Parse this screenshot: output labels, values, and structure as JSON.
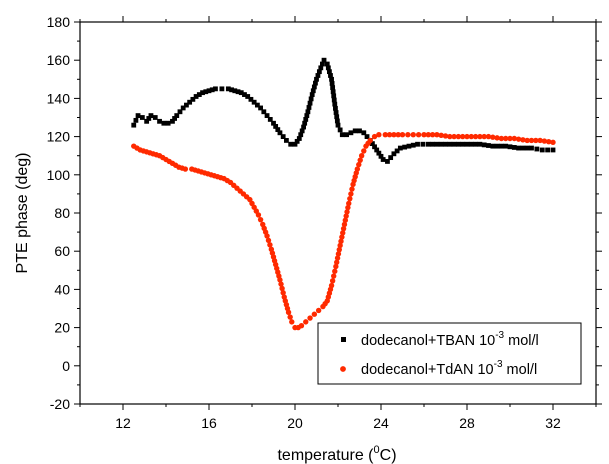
{
  "chart_data": {
    "type": "scatter",
    "title": "",
    "xlabel": {
      "text": "temperature (",
      "sup": "0",
      "tail": "C)"
    },
    "ylabel": "PTE phase (deg)",
    "xlim": [
      10,
      34
    ],
    "ylim": [
      -20,
      180
    ],
    "x_ticks": [
      12,
      16,
      20,
      24,
      28,
      32
    ],
    "y_ticks": [
      -20,
      0,
      20,
      40,
      60,
      80,
      100,
      120,
      140,
      160,
      180
    ],
    "grid": false,
    "legend_position": "bottom-right",
    "series": [
      {
        "name": "dodecanol+TBAN 10-3 mol/l",
        "legend": {
          "prefix": "dodecanol+TBAN 10",
          "sup": "-3",
          "suffix": " mol/l"
        },
        "color": "#000000",
        "marker": "square",
        "points": [
          [
            12.5,
            126
          ],
          [
            12.7,
            131
          ],
          [
            12.9,
            130
          ],
          [
            13.1,
            128
          ],
          [
            13.3,
            131
          ],
          [
            13.5,
            130
          ],
          [
            13.7,
            128
          ],
          [
            13.9,
            127
          ],
          [
            14.1,
            127
          ],
          [
            14.3,
            128
          ],
          [
            14.5,
            131
          ],
          [
            14.8,
            135
          ],
          [
            15.1,
            138
          ],
          [
            15.4,
            141
          ],
          [
            15.7,
            143
          ],
          [
            16.0,
            144
          ],
          [
            16.3,
            145
          ],
          [
            16.6,
            145
          ],
          [
            16.9,
            145
          ],
          [
            17.2,
            144
          ],
          [
            17.5,
            143
          ],
          [
            17.8,
            141
          ],
          [
            18.1,
            138
          ],
          [
            18.4,
            135
          ],
          [
            18.7,
            131
          ],
          [
            19.0,
            127
          ],
          [
            19.3,
            122
          ],
          [
            19.6,
            118
          ],
          [
            19.8,
            116
          ],
          [
            20.0,
            116
          ],
          [
            20.2,
            119
          ],
          [
            20.4,
            125
          ],
          [
            20.6,
            133
          ],
          [
            20.8,
            142
          ],
          [
            21.0,
            150
          ],
          [
            21.2,
            156
          ],
          [
            21.35,
            160
          ],
          [
            21.5,
            158
          ],
          [
            21.7,
            150
          ],
          [
            21.85,
            137
          ],
          [
            22.0,
            126
          ],
          [
            22.2,
            121
          ],
          [
            22.4,
            121
          ],
          [
            22.6,
            122
          ],
          [
            22.8,
            123
          ],
          [
            23.0,
            123
          ],
          [
            23.2,
            122
          ],
          [
            23.5,
            118
          ],
          [
            23.8,
            113
          ],
          [
            24.1,
            108
          ],
          [
            24.3,
            107
          ],
          [
            24.6,
            111
          ],
          [
            24.9,
            114
          ],
          [
            25.3,
            115
          ],
          [
            25.7,
            116
          ],
          [
            26.2,
            116
          ],
          [
            26.8,
            116
          ],
          [
            27.4,
            116
          ],
          [
            28.0,
            116
          ],
          [
            28.6,
            116
          ],
          [
            29.2,
            115
          ],
          [
            29.8,
            115
          ],
          [
            30.4,
            114
          ],
          [
            31.0,
            114
          ],
          [
            31.5,
            113
          ],
          [
            32.0,
            113
          ]
        ]
      },
      {
        "name": "dodecanol+TdAN 10-3 mol/l",
        "legend": {
          "prefix": "dodecanol+TdAN 10",
          "sup": "-3",
          "suffix": " mol/l"
        },
        "color": "#ff2a00",
        "marker": "circle",
        "points": [
          [
            12.5,
            115
          ],
          [
            12.8,
            113
          ],
          [
            13.1,
            112
          ],
          [
            13.4,
            111
          ],
          [
            13.7,
            110
          ],
          [
            14.0,
            108
          ],
          [
            14.3,
            106
          ],
          [
            14.6,
            104
          ],
          [
            14.9,
            103
          ],
          [
            15.2,
            103
          ],
          [
            15.5,
            102
          ],
          [
            15.8,
            101
          ],
          [
            16.1,
            100
          ],
          [
            16.4,
            99
          ],
          [
            16.7,
            98
          ],
          [
            17.0,
            96
          ],
          [
            17.3,
            93
          ],
          [
            17.6,
            90
          ],
          [
            17.9,
            87
          ],
          [
            18.1,
            83
          ],
          [
            18.3,
            79
          ],
          [
            18.5,
            74
          ],
          [
            18.7,
            68
          ],
          [
            18.9,
            61
          ],
          [
            19.1,
            53
          ],
          [
            19.3,
            45
          ],
          [
            19.5,
            36
          ],
          [
            19.7,
            28
          ],
          [
            19.85,
            23
          ],
          [
            20.0,
            20
          ],
          [
            20.15,
            20
          ],
          [
            20.3,
            21
          ],
          [
            20.5,
            23
          ],
          [
            20.7,
            25
          ],
          [
            20.9,
            27
          ],
          [
            21.1,
            29
          ],
          [
            21.3,
            31
          ],
          [
            21.5,
            34
          ],
          [
            21.7,
            42
          ],
          [
            21.9,
            52
          ],
          [
            22.1,
            63
          ],
          [
            22.3,
            74
          ],
          [
            22.5,
            85
          ],
          [
            22.7,
            95
          ],
          [
            22.9,
            103
          ],
          [
            23.1,
            110
          ],
          [
            23.3,
            115
          ],
          [
            23.5,
            118
          ],
          [
            23.7,
            120
          ],
          [
            23.9,
            121
          ],
          [
            24.2,
            121
          ],
          [
            24.6,
            121
          ],
          [
            25.0,
            121
          ],
          [
            25.5,
            121
          ],
          [
            26.0,
            121
          ],
          [
            26.6,
            121
          ],
          [
            27.2,
            120
          ],
          [
            27.8,
            120
          ],
          [
            28.4,
            120
          ],
          [
            29.0,
            120
          ],
          [
            29.6,
            119
          ],
          [
            30.2,
            119
          ],
          [
            30.8,
            118
          ],
          [
            31.4,
            118
          ],
          [
            32.0,
            117
          ]
        ]
      }
    ]
  }
}
